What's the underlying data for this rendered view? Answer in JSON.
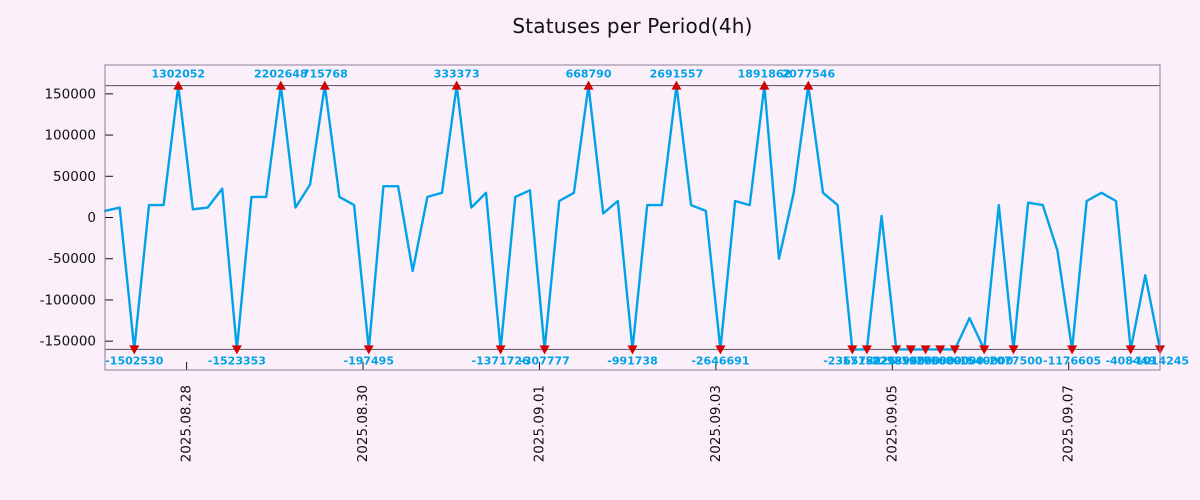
{
  "chart_data": {
    "type": "line",
    "title": "Statuses per Period(4h)",
    "xlabel": "",
    "ylabel": "",
    "ylim": [
      -185000,
      185000
    ],
    "clip_value": 160000,
    "grid": false,
    "legend": "none",
    "y_ticks": [
      150000,
      100000,
      50000,
      0,
      -50000,
      -100000,
      -150000
    ],
    "x_ticks": [
      {
        "label": "2025.08.28",
        "index": 5.57
      },
      {
        "label": "2025.08.30",
        "index": 17.61
      },
      {
        "label": "2025.09.01",
        "index": 29.65
      },
      {
        "label": "2025.09.03",
        "index": 41.69
      },
      {
        "label": "2025.09.05",
        "index": 53.73
      },
      {
        "label": "2025.09.07",
        "index": 65.77
      }
    ],
    "point_interval": "4h",
    "values": [
      8000,
      12000,
      -1502530,
      15000,
      15000,
      1302052,
      10000,
      12000,
      35000,
      -1523353,
      25000,
      25000,
      2202648,
      12000,
      40000,
      715768,
      25000,
      15000,
      -197495,
      38000,
      38000,
      -65000,
      25000,
      30000,
      333373,
      12000,
      30000,
      -1371726,
      25000,
      33000,
      -307777,
      20000,
      30000,
      668790,
      5000,
      20000,
      -991738,
      15000,
      15000,
      2691557,
      15000,
      8000,
      -2646691,
      20000,
      15000,
      1891862,
      -50000,
      30000,
      2077546,
      30000,
      15000,
      -2365782,
      -1715026,
      2000,
      -2298960,
      -1850000,
      -1920000,
      -1760000,
      -1680000,
      -122000,
      -1540000,
      15000,
      -2077500,
      18000,
      15000,
      -40000,
      -1176605,
      20000,
      30000,
      20000,
      -408449,
      -70000,
      -1014245
    ],
    "colors": {
      "background": "#fbeffa",
      "line": "#00a3e8",
      "marker": "#d40000",
      "value_label": "#00a3e8",
      "frame": "#8d7f9b",
      "clip_line": "#55505c",
      "text": "#111111"
    }
  }
}
